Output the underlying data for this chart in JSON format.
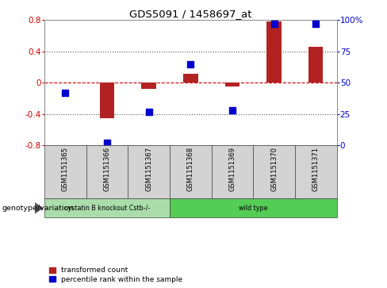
{
  "title": "GDS5091 / 1458697_at",
  "samples": [
    "GSM1151365",
    "GSM1151366",
    "GSM1151367",
    "GSM1151368",
    "GSM1151369",
    "GSM1151370",
    "GSM1151371"
  ],
  "transformed_count": [
    0.0,
    -0.45,
    -0.08,
    0.12,
    -0.05,
    0.78,
    0.46
  ],
  "percentile_rank": [
    42,
    2,
    27,
    65,
    28,
    97,
    97
  ],
  "ylim_left": [
    -0.8,
    0.8
  ],
  "ylim_right": [
    0,
    100
  ],
  "yticks_left": [
    -0.8,
    -0.4,
    0.0,
    0.4,
    0.8
  ],
  "yticks_right": [
    0,
    25,
    50,
    75,
    100
  ],
  "ytick_labels_left": [
    "-0.8",
    "-0.4",
    "0",
    "0.4",
    "0.8"
  ],
  "ytick_labels_right": [
    "0",
    "25",
    "50",
    "75",
    "100%"
  ],
  "bar_color": "#b22222",
  "dot_color": "#0000cc",
  "zero_line_color": "#cc0000",
  "dotted_line_color": "#555555",
  "groups": [
    {
      "label": "cystatin B knockout Cstb-/-",
      "start": 0,
      "end": 3,
      "color": "#aaddaa"
    },
    {
      "label": "wild type",
      "start": 3,
      "end": 7,
      "color": "#55cc55"
    }
  ],
  "group_row_label": "genotype/variation",
  "legend_items": [
    {
      "label": "transformed count",
      "color": "#b22222"
    },
    {
      "label": "percentile rank within the sample",
      "color": "#0000cc"
    }
  ],
  "bar_width": 0.35,
  "dot_size": 28,
  "background_color": "#ffffff",
  "tick_label_color_left": "#cc0000",
  "tick_label_color_right": "#0000cc"
}
